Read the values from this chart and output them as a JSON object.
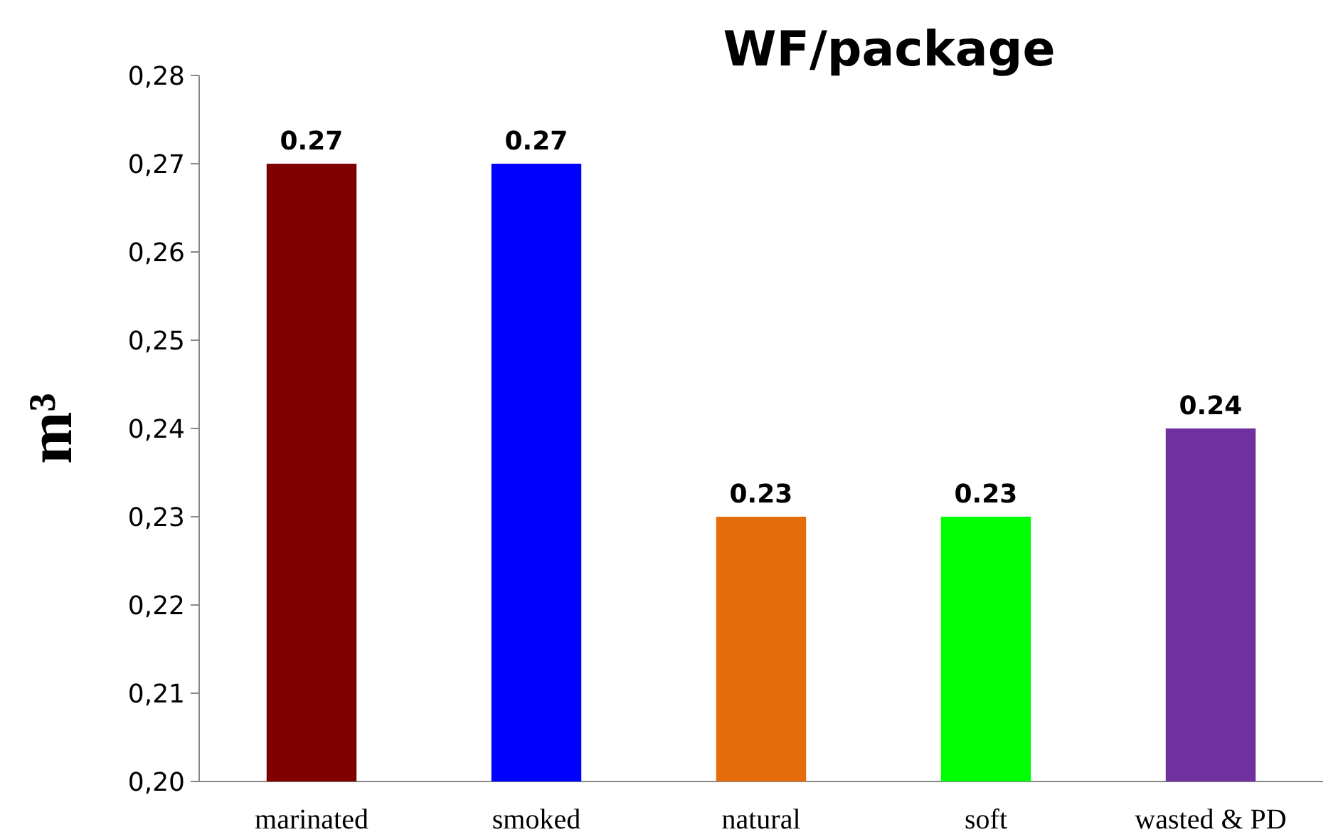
{
  "chart_data": {
    "type": "bar",
    "title": "WF/package",
    "ylabel": "m³",
    "categories": [
      "marinated",
      "smoked",
      "natural",
      "soft",
      "wasted & PD"
    ],
    "values": [
      0.27,
      0.27,
      0.23,
      0.23,
      0.24
    ],
    "colors": [
      "#800000",
      "#0000ff",
      "#e46c0a",
      "#00ff00",
      "#7030a0"
    ],
    "ylim": [
      0.2,
      0.28
    ],
    "yticks": [
      {
        "value": 0.2,
        "label": "0,20"
      },
      {
        "value": 0.21,
        "label": "0,21"
      },
      {
        "value": 0.22,
        "label": "0,22"
      },
      {
        "value": 0.23,
        "label": "0,23"
      },
      {
        "value": 0.24,
        "label": "0,24"
      },
      {
        "value": 0.25,
        "label": "0,25"
      },
      {
        "value": 0.26,
        "label": "0,26"
      },
      {
        "value": 0.27,
        "label": "0,27"
      },
      {
        "value": 0.28,
        "label": "0,28"
      }
    ],
    "data_labels": true,
    "grid": false
  }
}
